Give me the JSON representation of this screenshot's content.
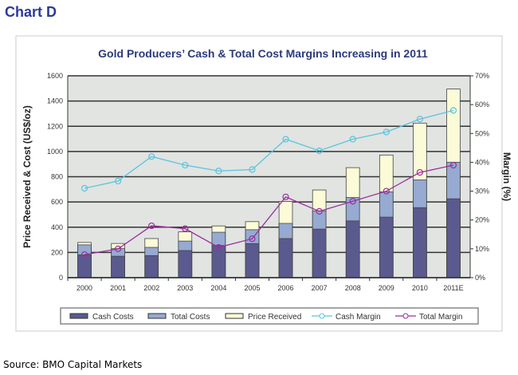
{
  "heading": "Chart D",
  "source": "Source:  BMO Capital Markets",
  "chart_data": {
    "type": "bar",
    "title": "Gold Producers’ Cash & Total Cost Margins Increasing in 2011",
    "ylabel": "Price Received & Cost (US$/oz)",
    "y2label": "Margin (%)",
    "ylim": [
      0,
      1600
    ],
    "yticks": [
      0,
      200,
      400,
      600,
      800,
      1000,
      1200,
      1400,
      1600
    ],
    "y2lim": [
      0,
      70
    ],
    "y2ticks": [
      "0%",
      "10%",
      "20%",
      "30%",
      "40%",
      "50%",
      "60%",
      "70%"
    ],
    "categories": [
      "2000",
      "2001",
      "2002",
      "2003",
      "2004",
      "2005",
      "2006",
      "2007",
      "2008",
      "2009",
      "2010",
      "2011E"
    ],
    "series": [
      {
        "name": "Cash Costs",
        "kind": "bar",
        "color": "#5a5a8e",
        "values": [
          180,
          170,
          175,
          215,
          255,
          270,
          310,
          385,
          450,
          480,
          555,
          625
        ]
      },
      {
        "name": "Total Costs",
        "kind": "bar",
        "color": "#96aad2",
        "values": [
          260,
          230,
          240,
          290,
          360,
          380,
          430,
          530,
          635,
          680,
          775,
          915
        ]
      },
      {
        "name": "Price Received",
        "kind": "bar",
        "color": "#fbfbd8",
        "values": [
          279,
          271,
          310,
          363,
          410,
          444,
          604,
          695,
          872,
          972,
          1225,
          1495
        ]
      },
      {
        "name": "Cash Margin",
        "kind": "line",
        "axis": "right",
        "color": "#5bc3de",
        "values": [
          31,
          33.5,
          42,
          39,
          37,
          37.5,
          48,
          44,
          48,
          50.5,
          55,
          58
        ]
      },
      {
        "name": "Total Margin",
        "kind": "line",
        "axis": "right",
        "color": "#9b2f9b",
        "values": [
          8,
          10,
          18,
          17,
          10.5,
          13.5,
          28,
          23,
          26.5,
          30,
          36.5,
          39
        ]
      }
    ],
    "grid": true,
    "legend": "bottom"
  }
}
